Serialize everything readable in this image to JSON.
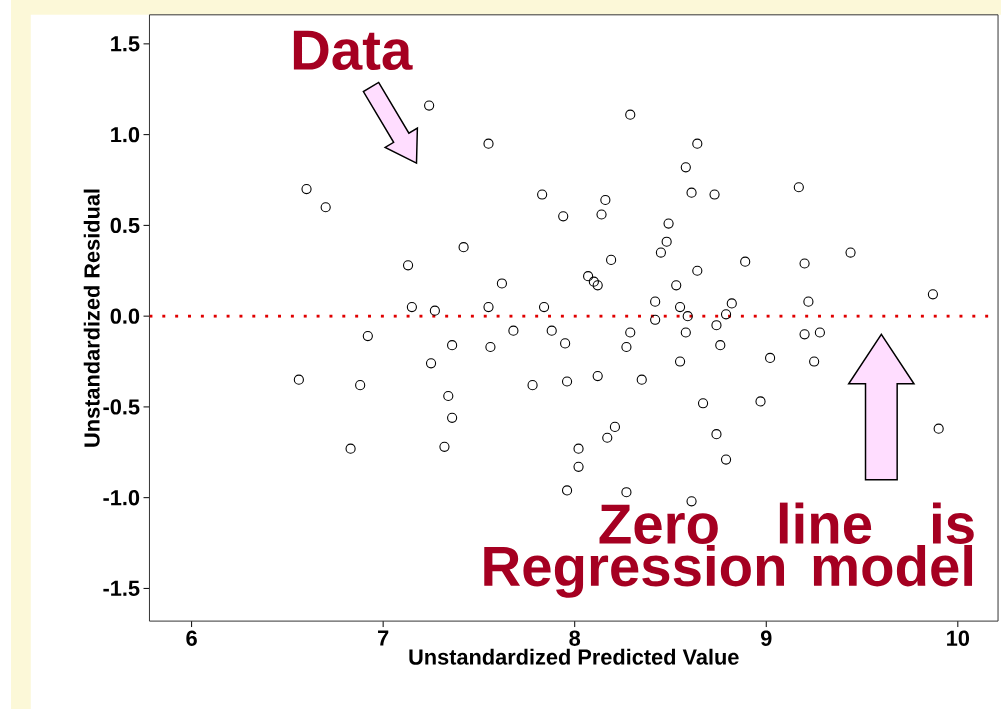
{
  "chart_data": {
    "type": "scatter",
    "xlabel": "Unstandardized Predicted Value",
    "ylabel": "Unstandardized Residual",
    "x": [
      6.56,
      6.6,
      6.7,
      6.83,
      6.88,
      6.92,
      7.13,
      7.15,
      7.24,
      7.25,
      7.27,
      7.32,
      7.34,
      7.36,
      7.36,
      7.42,
      7.55,
      7.55,
      7.56,
      7.62,
      7.68,
      7.78,
      7.83,
      7.84,
      7.88,
      7.94,
      7.95,
      7.96,
      7.96,
      8.02,
      8.02,
      8.07,
      8.1,
      8.12,
      8.12,
      8.14,
      8.16,
      8.17,
      8.19,
      8.21,
      8.27,
      8.29,
      8.29,
      8.27,
      8.35,
      8.42,
      8.42,
      8.45,
      8.48,
      8.49,
      8.53,
      8.55,
      8.55,
      8.58,
      8.58,
      8.59,
      8.61,
      8.61,
      8.64,
      8.64,
      8.67,
      8.73,
      8.74,
      8.74,
      8.76,
      8.79,
      8.79,
      8.82,
      8.89,
      8.97,
      9.02,
      9.17,
      9.2,
      9.2,
      9.22,
      9.25,
      9.28,
      9.44,
      9.87,
      9.9
    ],
    "values": [
      -0.35,
      0.7,
      0.6,
      -0.73,
      -0.38,
      -0.11,
      0.28,
      0.05,
      1.16,
      -0.26,
      0.03,
      -0.72,
      -0.44,
      -0.56,
      -0.16,
      0.38,
      0.95,
      0.05,
      -0.17,
      0.18,
      -0.08,
      -0.38,
      0.67,
      0.05,
      -0.08,
      0.55,
      -0.15,
      -0.36,
      -0.96,
      -0.73,
      -0.83,
      0.22,
      0.19,
      0.17,
      -0.33,
      0.56,
      0.64,
      -0.67,
      0.31,
      -0.61,
      -0.17,
      -0.09,
      1.11,
      -0.97,
      -0.35,
      0.08,
      -0.02,
      0.35,
      0.41,
      0.51,
      0.17,
      0.05,
      -0.25,
      0.82,
      -0.09,
      0.0,
      0.68,
      -1.02,
      0.25,
      0.95,
      -0.48,
      0.67,
      -0.05,
      -0.65,
      -0.16,
      -0.79,
      0.01,
      0.07,
      0.3,
      -0.47,
      -0.23,
      0.71,
      0.29,
      -0.1,
      0.08,
      -0.25,
      -0.09,
      0.35,
      0.12,
      -0.62
    ],
    "color": "#000000",
    "marker": "circle",
    "grid": false,
    "xlim": [
      5.78,
      10.21
    ],
    "ylim": [
      -1.68,
      1.66
    ],
    "xticks": [
      6,
      7,
      8,
      9,
      10
    ],
    "yticks": [
      {
        "value": -1.5,
        "label": "-1.5"
      },
      {
        "value": -1.0,
        "label": "-1.0"
      },
      {
        "value": -0.5,
        "label": "-0.5"
      },
      {
        "value": 0.0,
        "label": "0.0"
      },
      {
        "value": 0.5,
        "label": "0.5"
      },
      {
        "value": 1.0,
        "label": "1.0"
      },
      {
        "value": 1.5,
        "label": "1.5"
      }
    ],
    "ref_lines": [
      {
        "axis": "y",
        "value": 0,
        "color": "#e00000",
        "line_style": "dotted"
      }
    ],
    "annotations": [
      "Data",
      "Zero line is Regression model"
    ]
  }
}
